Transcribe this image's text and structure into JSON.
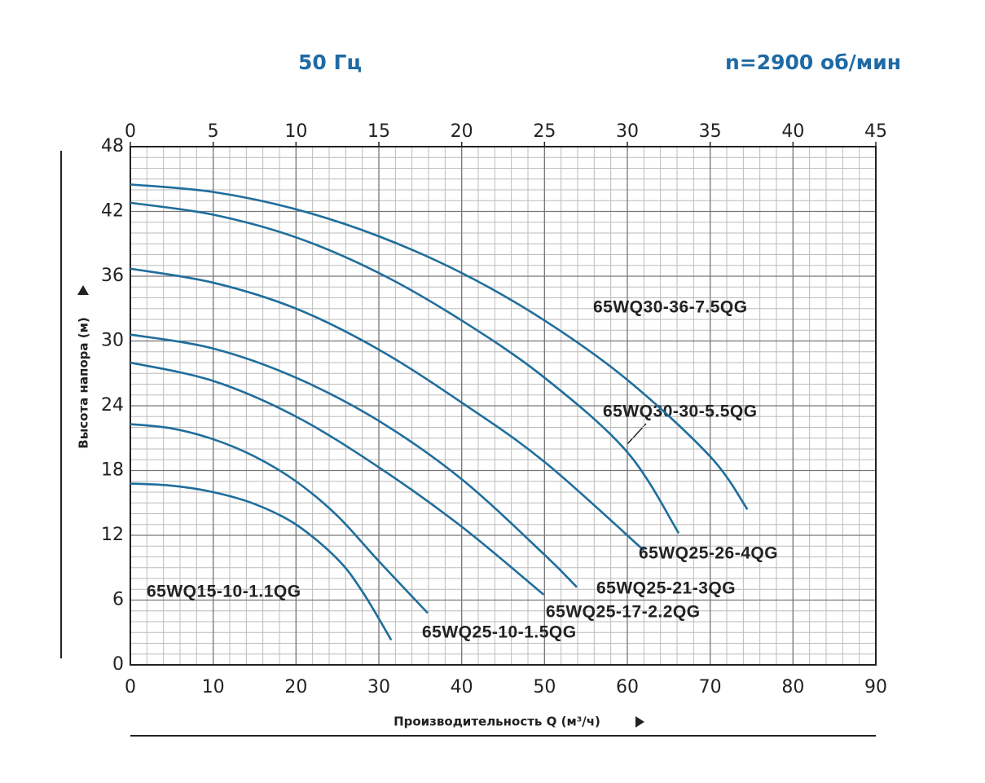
{
  "header": {
    "frequency": "50 Гц",
    "speed": "n=2900 об/мин"
  },
  "chart_data": {
    "type": "line",
    "x_label": "Производительность Q (м³/ч)",
    "y_label": "Высота напора (м)",
    "xlim": [
      0,
      90
    ],
    "xticks": [
      0,
      10,
      20,
      30,
      40,
      50,
      60,
      70,
      80,
      90
    ],
    "x2lim": [
      0,
      45
    ],
    "x2ticks": [
      0,
      5,
      10,
      15,
      20,
      25,
      30,
      35,
      40,
      45
    ],
    "ylim": [
      0,
      48
    ],
    "yticks": [
      0,
      6,
      12,
      18,
      24,
      30,
      36,
      42,
      48
    ],
    "grid": true,
    "series": [
      {
        "name": "65WQ15-10-1.1QG",
        "color": "#1f6e9c",
        "x": [
          0,
          5,
          10,
          15,
          20,
          25,
          28,
          31.5
        ],
        "values": [
          16.8,
          16.6,
          16.0,
          14.9,
          13.0,
          9.8,
          6.8,
          2.3
        ]
      },
      {
        "name": "65WQ25-10-1.5QG",
        "color": "#1f6e9c",
        "x": [
          0,
          5,
          10,
          15,
          20,
          25,
          30,
          35.9
        ],
        "values": [
          22.3,
          21.9,
          20.9,
          19.3,
          17.0,
          13.8,
          9.6,
          4.8
        ]
      },
      {
        "name": "65WQ25-17-2.2QG",
        "color": "#1f6e9c",
        "x": [
          0,
          10,
          20,
          30,
          40,
          49.9
        ],
        "values": [
          28.0,
          26.3,
          23.0,
          18.3,
          12.8,
          6.5
        ]
      },
      {
        "name": "65WQ25-21-3QG",
        "color": "#1f6e9c",
        "x": [
          0,
          10,
          20,
          30,
          40,
          50,
          53.9
        ],
        "values": [
          30.6,
          29.3,
          26.6,
          22.6,
          17.2,
          10.2,
          7.2
        ]
      },
      {
        "name": "65WQ25-26-4QG",
        "color": "#1f6e9c",
        "x": [
          0,
          10,
          20,
          30,
          40,
          50,
          62
        ],
        "values": [
          36.7,
          35.4,
          33.0,
          29.2,
          24.3,
          18.8,
          10.6
        ]
      },
      {
        "name": "65WQ30-30-5.5QG",
        "color": "#1f6e9c",
        "x": [
          0,
          10,
          20,
          30,
          40,
          50,
          60,
          66.2
        ],
        "values": [
          42.8,
          41.7,
          39.6,
          36.3,
          31.9,
          26.6,
          19.7,
          12.2
        ]
      },
      {
        "name": "65WQ30-36-7.5QG",
        "color": "#1f6e9c",
        "x": [
          0,
          10,
          20,
          30,
          40,
          50,
          60,
          70,
          74.5
        ],
        "values": [
          44.5,
          43.8,
          42.2,
          39.7,
          36.3,
          31.9,
          26.4,
          19.3,
          14.4
        ]
      }
    ]
  }
}
